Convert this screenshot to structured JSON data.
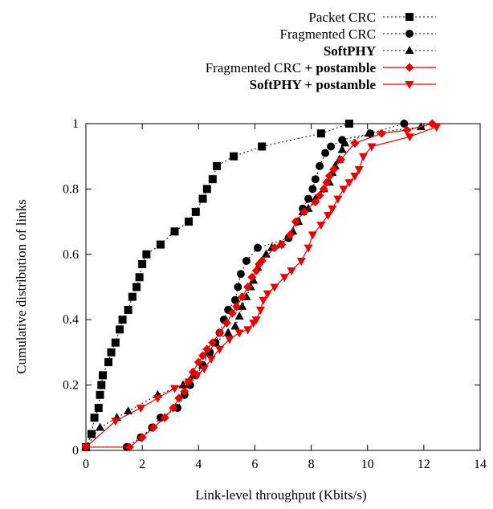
{
  "chart_data": {
    "type": "line",
    "title": "",
    "xlabel": "Link-level throughput (Kbits/s)",
    "ylabel": "Cumulative distribution of links",
    "xlim": [
      0,
      14
    ],
    "ylim": [
      0,
      1
    ],
    "x_ticks": [
      "0",
      "2",
      "4",
      "6",
      "8",
      "10",
      "12",
      "14"
    ],
    "y_ticks": [
      "0",
      "0.2",
      "0.4",
      "0.6",
      "0.8",
      "1"
    ],
    "grid": false,
    "legend_position": "top-right",
    "series": [
      {
        "name": "Packet CRC",
        "name_parts": [
          {
            "text": "Packet CRC",
            "bold": false
          }
        ],
        "marker": "square",
        "line": "dotted",
        "color": "#000000",
        "x": [
          0.0,
          0.2,
          0.3,
          0.45,
          0.5,
          0.55,
          0.6,
          0.8,
          0.9,
          1.05,
          1.2,
          1.3,
          1.5,
          1.65,
          1.8,
          1.9,
          2.0,
          2.15,
          2.65,
          3.15,
          3.65,
          3.9,
          4.15,
          4.3,
          4.5,
          4.65,
          5.25,
          6.25,
          8.35,
          9.35
        ],
        "y": [
          0.01,
          0.05,
          0.1,
          0.13,
          0.17,
          0.2,
          0.23,
          0.27,
          0.3,
          0.33,
          0.37,
          0.4,
          0.43,
          0.47,
          0.5,
          0.53,
          0.57,
          0.6,
          0.63,
          0.67,
          0.7,
          0.73,
          0.77,
          0.8,
          0.83,
          0.87,
          0.9,
          0.93,
          0.97,
          1.0
        ]
      },
      {
        "name": "Fragmented CRC",
        "name_parts": [
          {
            "text": "Fragmented CRC",
            "bold": false
          }
        ],
        "marker": "circle",
        "line": "dotted",
        "color": "#000000",
        "x": [
          0.0,
          1.45,
          1.95,
          2.35,
          2.65,
          3.25,
          3.5,
          3.7,
          3.9,
          4.15,
          4.4,
          4.6,
          4.75,
          4.9,
          5.05,
          5.3,
          5.4,
          5.5,
          5.7,
          6.1,
          7.2,
          7.5,
          7.7,
          7.9,
          8.05,
          8.15,
          8.3,
          8.5,
          8.7,
          9.1,
          10.1,
          11.3
        ],
        "y": [
          0.01,
          0.01,
          0.04,
          0.07,
          0.1,
          0.13,
          0.17,
          0.2,
          0.23,
          0.26,
          0.3,
          0.33,
          0.36,
          0.4,
          0.43,
          0.46,
          0.5,
          0.54,
          0.58,
          0.62,
          0.65,
          0.7,
          0.74,
          0.77,
          0.8,
          0.83,
          0.87,
          0.91,
          0.93,
          0.95,
          0.97,
          1.0
        ]
      },
      {
        "name": "SoftPHY",
        "name_parts": [
          {
            "text": "SoftPHY",
            "bold": true
          }
        ],
        "marker": "triangle-up",
        "line": "dotted",
        "color": "#000000",
        "x": [
          0.0,
          0.5,
          1.1,
          1.5,
          2.55,
          3.45,
          3.8,
          4.15,
          4.35,
          4.6,
          5.05,
          5.3,
          5.45,
          5.55,
          5.7,
          5.85,
          5.95,
          6.1,
          6.4,
          6.6,
          6.9,
          7.35,
          7.55,
          7.7,
          7.9,
          8.15,
          8.45,
          8.65,
          8.75,
          8.85,
          9.0,
          9.1,
          9.2,
          10.05,
          11.9
        ],
        "y": [
          0.01,
          0.07,
          0.1,
          0.12,
          0.17,
          0.2,
          0.23,
          0.26,
          0.3,
          0.33,
          0.36,
          0.38,
          0.41,
          0.44,
          0.47,
          0.5,
          0.52,
          0.56,
          0.6,
          0.62,
          0.63,
          0.67,
          0.7,
          0.73,
          0.74,
          0.77,
          0.8,
          0.82,
          0.85,
          0.87,
          0.89,
          0.92,
          0.94,
          0.97,
          0.99
        ]
      },
      {
        "name": "Fragmented CRC + postamble",
        "name_parts": [
          {
            "text": "Fragmented CRC",
            "bold": false
          },
          {
            "text": " + postamble",
            "bold": true
          }
        ],
        "marker": "diamond",
        "line": "solid",
        "color": "#e60000",
        "x": [
          0.0,
          1.55,
          2.0,
          2.4,
          2.8,
          3.1,
          3.3,
          3.5,
          3.65,
          3.8,
          4.0,
          4.15,
          4.3,
          4.5,
          4.75,
          5.0,
          5.2,
          5.35,
          5.55,
          5.75,
          5.9,
          6.05,
          6.15,
          6.25,
          6.7,
          6.95,
          7.25,
          7.45,
          7.75,
          8.15,
          8.3,
          8.45,
          8.55,
          8.65,
          8.8,
          9.05,
          9.55,
          10.5,
          11.4,
          12.3
        ],
        "y": [
          0.01,
          0.01,
          0.04,
          0.07,
          0.1,
          0.13,
          0.16,
          0.18,
          0.21,
          0.24,
          0.27,
          0.29,
          0.31,
          0.33,
          0.36,
          0.39,
          0.42,
          0.44,
          0.47,
          0.5,
          0.53,
          0.55,
          0.57,
          0.58,
          0.62,
          0.63,
          0.66,
          0.7,
          0.73,
          0.76,
          0.78,
          0.8,
          0.82,
          0.84,
          0.86,
          0.89,
          0.94,
          0.97,
          0.98,
          1.0
        ]
      },
      {
        "name": "SoftPHY + postamble",
        "name_parts": [
          {
            "text": "SoftPHY + postamble",
            "bold": true
          }
        ],
        "marker": "triangle-down",
        "line": "solid",
        "color": "#e60000",
        "x": [
          0.0,
          1.05,
          1.95,
          2.55,
          3.15,
          3.65,
          3.95,
          4.2,
          4.45,
          4.75,
          5.1,
          5.45,
          5.75,
          5.95,
          6.05,
          6.2,
          6.3,
          6.45,
          6.7,
          7.05,
          7.3,
          7.65,
          7.9,
          8.05,
          8.35,
          8.6,
          8.75,
          8.95,
          9.15,
          9.35,
          9.55,
          9.7,
          9.85,
          10.15,
          11.5,
          12.45
        ],
        "y": [
          0.01,
          0.09,
          0.13,
          0.16,
          0.19,
          0.21,
          0.23,
          0.25,
          0.28,
          0.31,
          0.34,
          0.36,
          0.37,
          0.39,
          0.4,
          0.43,
          0.46,
          0.48,
          0.5,
          0.53,
          0.55,
          0.58,
          0.62,
          0.66,
          0.69,
          0.72,
          0.74,
          0.77,
          0.8,
          0.82,
          0.84,
          0.86,
          0.9,
          0.93,
          0.96,
          0.99
        ]
      }
    ]
  }
}
